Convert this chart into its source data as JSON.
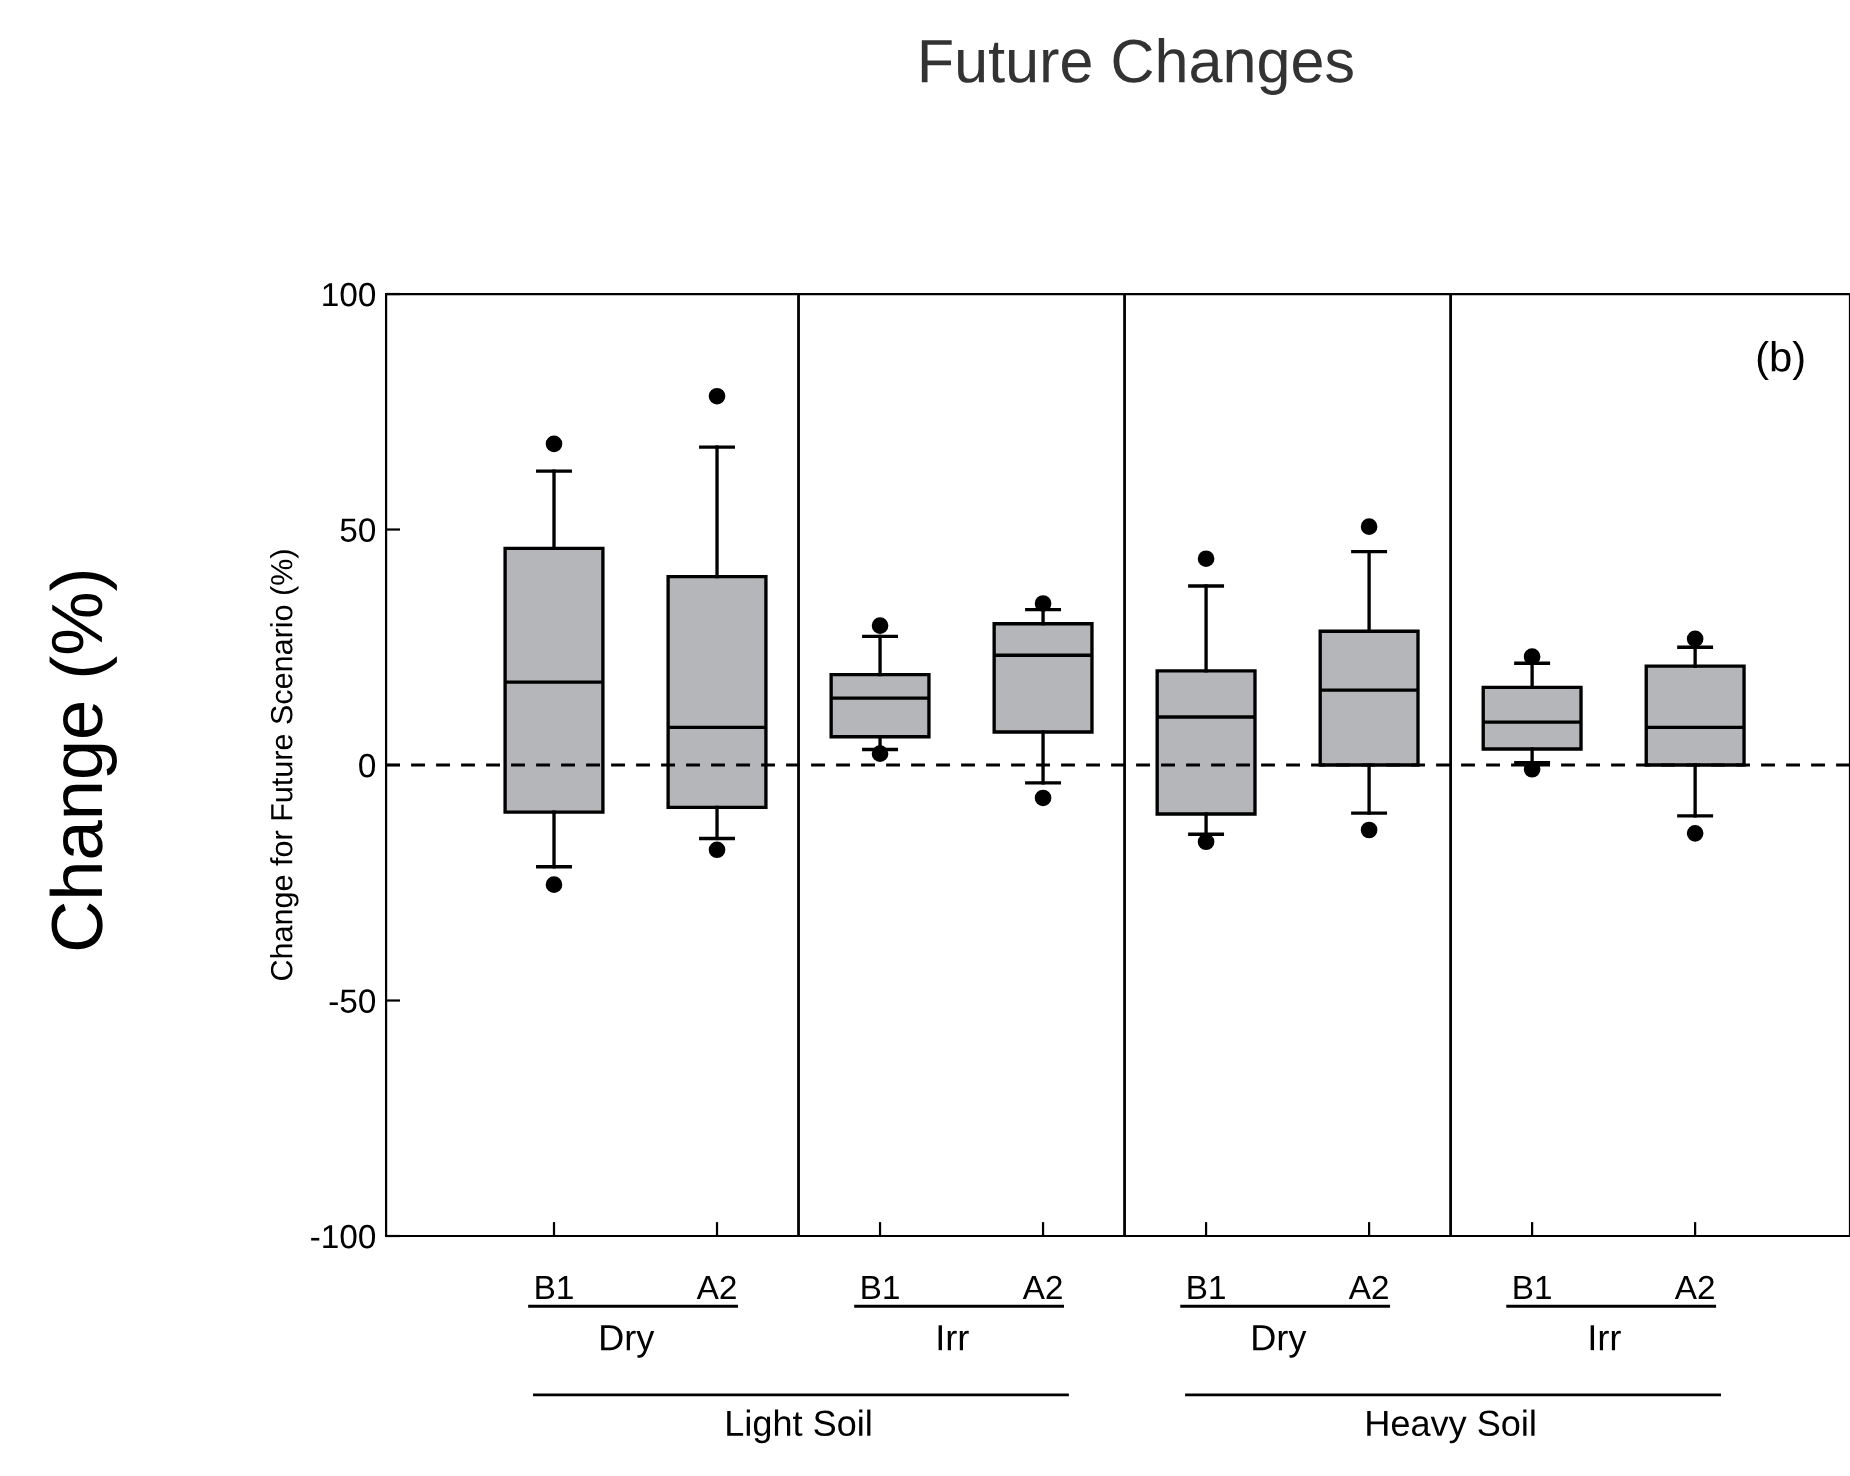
{
  "chart_data": {
    "type": "box",
    "title": "Future Changes",
    "ylabel": "Change for Future Scenario (%)",
    "categories": [
      "B1",
      "A2",
      "B1",
      "A2",
      "B1",
      "A2",
      "B1",
      "A2"
    ],
    "series": [
      {
        "color": "#b4b6b9",
        "boxes": [
          {
            "low": -21.6,
            "q1": -10,
            "median": 17.6,
            "q3": 46,
            "high": 62.4,
            "outliers": [
              68.2,
              -25.4
            ]
          },
          {
            "low": -15.6,
            "q1": -9,
            "median": 8,
            "q3": 40,
            "high": 67.5,
            "outliers": [
              78.3,
              -18
            ]
          },
          {
            "low": 3.3,
            "q1": 6,
            "median": 14.2,
            "q3": 19.2,
            "high": 27.3,
            "outliers": [
              29.6,
              2.4
            ]
          },
          {
            "low": -3.8,
            "q1": 7,
            "median": 23.3,
            "q3": 30,
            "high": 33,
            "outliers": [
              34.3,
              -7
            ]
          },
          {
            "low": -14.7,
            "q1": -10.4,
            "median": 10.2,
            "q3": 20,
            "high": 38,
            "outliers": [
              43.8,
              -16.3
            ]
          },
          {
            "low": -10.2,
            "q1": 0,
            "median": 15.9,
            "q3": 28.4,
            "high": 45.3,
            "outliers": [
              50.6,
              -13.8
            ]
          },
          {
            "low": 0.5,
            "q1": 3.4,
            "median": 9.1,
            "q3": 16.5,
            "high": 21.6,
            "outliers": [
              23,
              -0.9
            ]
          },
          {
            "low": -10.8,
            "q1": 0,
            "median": 8,
            "q3": 21,
            "high": 25,
            "outliers": [
              26.8,
              -14.5
            ]
          }
        ]
      }
    ],
    "ylim": [
      -100,
      100
    ],
    "yticks": [
      -100,
      -50,
      0,
      50,
      100
    ],
    "grid": false,
    "legend": false,
    "ref_lines": [
      {
        "axis": "y",
        "value": 0,
        "line_style": "dashed",
        "color": "#000000"
      }
    ],
    "annotations": [
      "(b)",
      "Change (%)",
      "Dry",
      "Irr",
      "Dry",
      "Irr",
      "Light Soil",
      "Heavy Soil"
    ]
  }
}
